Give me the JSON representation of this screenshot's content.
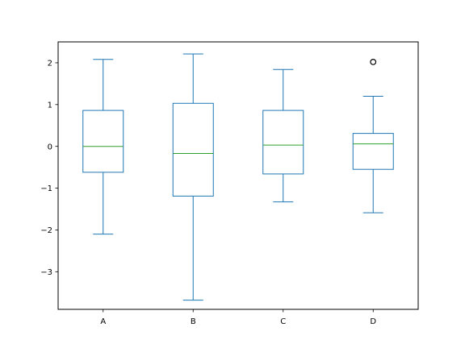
{
  "chart_data": {
    "type": "box",
    "title": "",
    "xlabel": "",
    "ylabel": "",
    "ylim": [
      -3.9,
      2.5
    ],
    "yticks": [
      -3,
      -2,
      -1,
      0,
      1,
      2
    ],
    "ytick_labels": [
      "−3",
      "−2",
      "−1",
      "0",
      "1",
      "2"
    ],
    "grid": false,
    "categories": [
      "A",
      "B",
      "C",
      "D"
    ],
    "boxes": [
      {
        "label": "A",
        "whisker_low": -2.1,
        "q1": -0.62,
        "median": 0.0,
        "q3": 0.86,
        "whisker_high": 2.08,
        "outliers": []
      },
      {
        "label": "B",
        "whisker_low": -3.68,
        "q1": -1.19,
        "median": -0.17,
        "q3": 1.03,
        "whisker_high": 2.21,
        "outliers": []
      },
      {
        "label": "C",
        "whisker_low": -1.33,
        "q1": -0.66,
        "median": 0.03,
        "q3": 0.86,
        "whisker_high": 1.84,
        "outliers": []
      },
      {
        "label": "D",
        "whisker_low": -1.59,
        "q1": -0.55,
        "median": 0.06,
        "q3": 0.31,
        "whisker_high": 1.2,
        "outliers": [
          2.02
        ]
      }
    ],
    "colors": {
      "box": "#1f77b4",
      "median": "#2ca02c",
      "axes": "#000000",
      "outlier": "#000000"
    }
  }
}
